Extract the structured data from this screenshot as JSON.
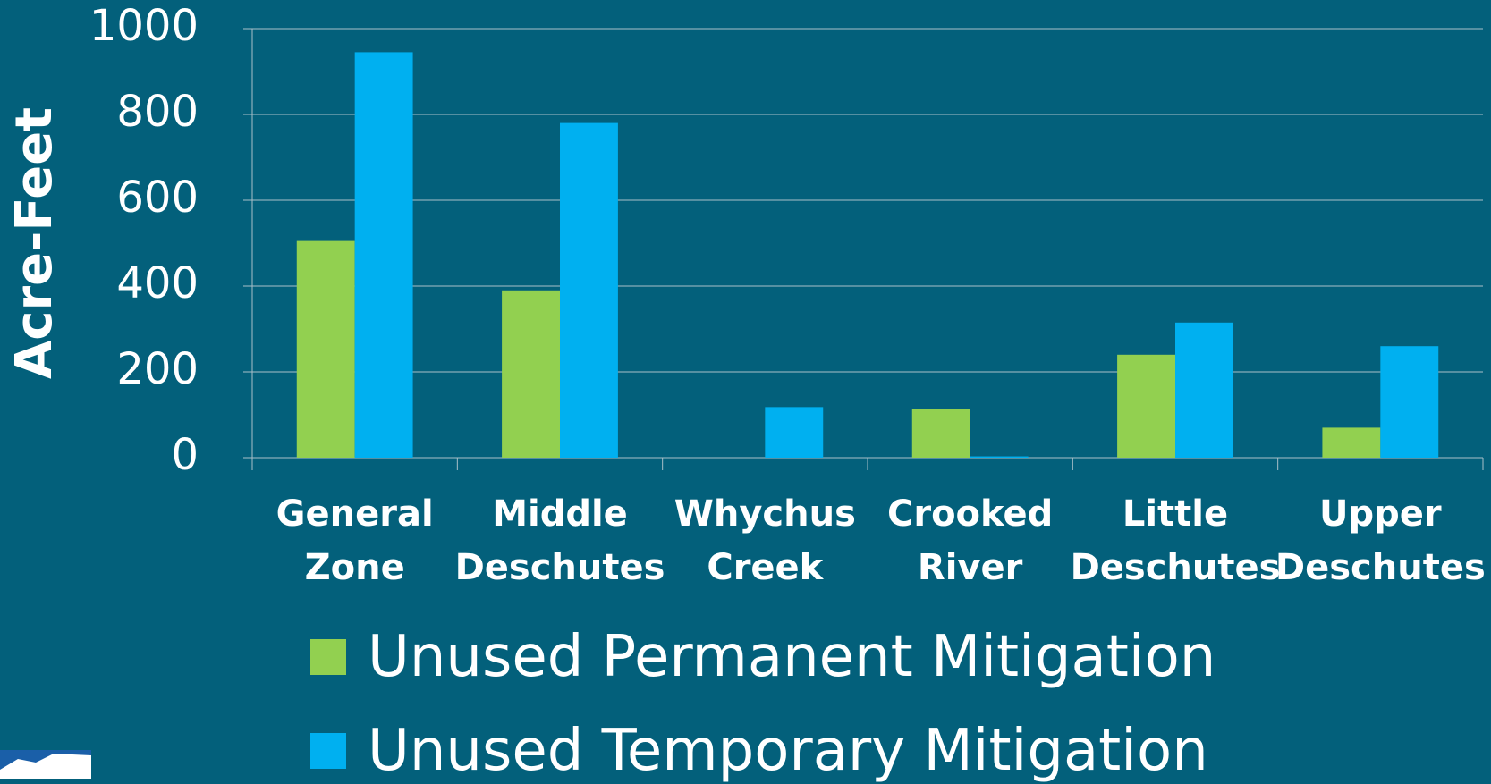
{
  "chart_data": {
    "type": "bar",
    "y_label": "Acre-Feet",
    "categories": [
      "General Zone",
      "Middle Deschutes",
      "Whychus Creek",
      "Crooked River",
      "Little Deschutes",
      "Upper Deschutes"
    ],
    "series": [
      {
        "name": "Unused Permanent Mitigation",
        "color": "#92d050",
        "values": [
          505,
          390,
          0,
          113,
          240,
          70
        ]
      },
      {
        "name": "Unused Temporary Mitigation",
        "color": "#00b0f0",
        "values": [
          945,
          780,
          118,
          3,
          315,
          260
        ]
      }
    ],
    "ylim": [
      0,
      1000
    ],
    "yticks": [
      0,
      200,
      400,
      600,
      800,
      1000
    ],
    "grid": true
  }
}
